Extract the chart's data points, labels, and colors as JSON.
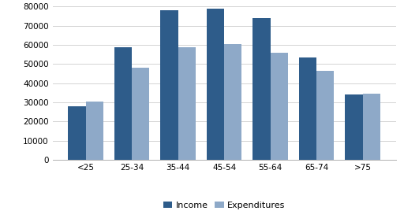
{
  "categories": [
    "<25",
    "25-34",
    "35-44",
    "45-54",
    "55-64",
    "65-74",
    ">75"
  ],
  "income": [
    28000,
    59000,
    78000,
    79000,
    74000,
    53500,
    34000
  ],
  "expenditures": [
    30500,
    48000,
    59000,
    60500,
    56000,
    46500,
    34500
  ],
  "income_color": "#2E5C8A",
  "expenditures_color": "#8EA9C8",
  "ylim": [
    0,
    80000
  ],
  "yticks": [
    0,
    10000,
    20000,
    30000,
    40000,
    50000,
    60000,
    70000,
    80000
  ],
  "legend_labels": [
    "Income",
    "Expenditures"
  ],
  "background_color": "#ffffff",
  "grid_color": "#d3d3d3",
  "bar_width": 0.38,
  "tick_fontsize": 7.5,
  "legend_fontsize": 8
}
